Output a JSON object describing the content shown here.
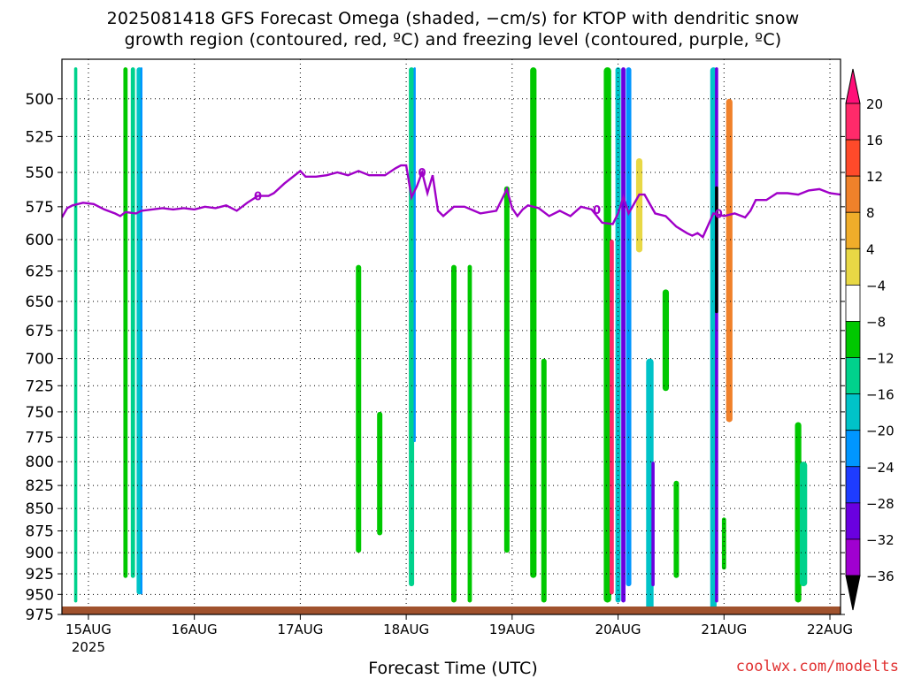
{
  "header": {
    "line1": "2025081418 GFS Forecast Omega (shaded, −cm/s) for KTOP with dendritic snow",
    "line2": "growth region (contoured, red, ºC) and freezing level (contoured, purple, ºC)"
  },
  "footer": {
    "xlabel": "Forecast Time (UTC)",
    "watermark": "coolwx.com/modelts"
  },
  "chart_data": {
    "type": "heatmap",
    "y_axis": {
      "label": "",
      "ticks": [
        500,
        525,
        550,
        575,
        600,
        625,
        650,
        675,
        700,
        725,
        750,
        775,
        800,
        825,
        850,
        875,
        900,
        925,
        950,
        975
      ],
      "range": [
        975,
        475
      ]
    },
    "x_axis": {
      "label": "Forecast Time (UTC)",
      "ticks": [
        "15AUG",
        "16AUG",
        "17AUG",
        "18AUG",
        "19AUG",
        "20AUG",
        "21AUG",
        "22AUG"
      ],
      "year_label": "2025",
      "range_days": [
        -0.25,
        7.1
      ]
    },
    "colorbar": {
      "labels": [
        "20",
        "16",
        "12",
        "8",
        "4",
        "−4",
        "−8",
        "−12",
        "−16",
        "−20",
        "−24",
        "−28",
        "−32",
        "−36"
      ],
      "colors": [
        "#ff2a6a",
        "#ff4a2a",
        "#f0812a",
        "#f0ad2a",
        "#e8d845",
        "#ffffff",
        "#00c800",
        "#00d28c",
        "#00c3c8",
        "#0096ff",
        "#1e3cff",
        "#6a00e0",
        "#a000d0",
        "#b4b4b4",
        "#000000",
        "#ff0f78"
      ]
    },
    "freezing_level": {
      "label": "0",
      "color": "#a000c8",
      "x_days": [
        -0.25,
        -0.2,
        -0.15,
        -0.05,
        0.05,
        0.15,
        0.25,
        0.3,
        0.35,
        0.45,
        0.5,
        0.6,
        0.7,
        0.8,
        0.9,
        1.0,
        1.1,
        1.2,
        1.3,
        1.4,
        1.5,
        1.6,
        1.7,
        1.75,
        1.85,
        2.0,
        2.05,
        2.15,
        2.25,
        2.35,
        2.45,
        2.55,
        2.65,
        2.8,
        2.9,
        2.95,
        3.0,
        3.05,
        3.1,
        3.15,
        3.2,
        3.25,
        3.3,
        3.35,
        3.45,
        3.55,
        3.7,
        3.85,
        3.95,
        4.0,
        4.05,
        4.1,
        4.15,
        4.25,
        4.35,
        4.45,
        4.55,
        4.65,
        4.75,
        4.85,
        4.95,
        5.0,
        5.05,
        5.1,
        5.2,
        5.25,
        5.35,
        5.45,
        5.55,
        5.65,
        5.7,
        5.75,
        5.8,
        5.9,
        6.0,
        6.1,
        6.2,
        6.25,
        6.3,
        6.4,
        6.5,
        6.6,
        6.7,
        6.8,
        6.9,
        7.0,
        7.1
      ],
      "y_hpa": [
        583,
        576,
        574,
        572,
        573,
        577,
        580,
        582,
        579,
        580,
        578,
        577,
        576,
        577,
        576,
        577,
        575,
        576,
        574,
        578,
        572,
        567,
        567,
        565,
        558,
        549,
        553,
        553,
        552,
        550,
        552,
        549,
        552,
        552,
        547,
        545,
        545,
        568,
        560,
        550,
        565,
        552,
        578,
        582,
        575,
        575,
        580,
        578,
        562,
        576,
        582,
        577,
        574,
        576,
        582,
        578,
        582,
        575,
        577,
        587,
        588,
        580,
        568,
        580,
        566,
        566,
        580,
        582,
        590,
        595,
        597,
        595,
        598,
        580,
        582,
        580,
        583,
        578,
        570,
        570,
        565,
        565,
        566,
        563,
        562,
        565,
        566
      ]
    },
    "omega_cells": [
      {
        "x": -0.12,
        "p": [
          480,
          960
        ],
        "w": 0.03,
        "c": 7
      },
      {
        "x": -0.02,
        "p": [
          480,
          640
        ],
        "w": 0.03,
        "c": 5
      },
      {
        "x": 0.3,
        "p": [
          480,
          525
        ],
        "w": 0.03,
        "c": 5
      },
      {
        "x": 0.35,
        "p": [
          480,
          930
        ],
        "w": 0.04,
        "c": 6
      },
      {
        "x": 0.42,
        "p": [
          480,
          930
        ],
        "w": 0.04,
        "c": 7
      },
      {
        "x": 0.48,
        "p": [
          480,
          950
        ],
        "w": 0.05,
        "c": 8
      },
      {
        "x": 0.5,
        "p": [
          480,
          950
        ],
        "w": 0.02,
        "c": 9
      },
      {
        "x": 0.6,
        "p": [
          480,
          700
        ],
        "w": 0.04,
        "c": 5
      },
      {
        "x": 1.5,
        "p": [
          510,
          760
        ],
        "w": 0.05,
        "c": 5
      },
      {
        "x": 1.6,
        "p": [
          560,
          780
        ],
        "w": 0.04,
        "c": 5
      },
      {
        "x": 2.3,
        "p": [
          560,
          640
        ],
        "w": 0.04,
        "c": 5
      },
      {
        "x": 2.45,
        "p": [
          600,
          940
        ],
        "w": 0.06,
        "c": 5
      },
      {
        "x": 2.55,
        "p": [
          620,
          900
        ],
        "w": 0.05,
        "c": 6
      },
      {
        "x": 2.75,
        "p": [
          750,
          880
        ],
        "w": 0.05,
        "c": 6
      },
      {
        "x": 3.05,
        "p": [
          480,
          940
        ],
        "w": 0.05,
        "c": 7
      },
      {
        "x": 3.08,
        "p": [
          480,
          780
        ],
        "w": 0.02,
        "c": 9
      },
      {
        "x": 3.3,
        "p": [
          560,
          720
        ],
        "w": 0.04,
        "c": 5
      },
      {
        "x": 3.45,
        "p": [
          620,
          960
        ],
        "w": 0.05,
        "c": 6
      },
      {
        "x": 3.6,
        "p": [
          620,
          960
        ],
        "w": 0.04,
        "c": 6
      },
      {
        "x": 3.8,
        "p": [
          530,
          730
        ],
        "w": 0.04,
        "c": 5
      },
      {
        "x": 3.95,
        "p": [
          560,
          900
        ],
        "w": 0.05,
        "c": 6
      },
      {
        "x": 4.2,
        "p": [
          480,
          930
        ],
        "w": 0.06,
        "c": 6
      },
      {
        "x": 4.3,
        "p": [
          700,
          960
        ],
        "w": 0.05,
        "c": 6
      },
      {
        "x": 4.5,
        "p": [
          480,
          870
        ],
        "w": 0.06,
        "c": 5
      },
      {
        "x": 4.6,
        "p": [
          560,
          760
        ],
        "w": 0.04,
        "c": 5
      },
      {
        "x": 4.75,
        "p": [
          600,
          900
        ],
        "w": 0.04,
        "c": 5
      },
      {
        "x": 4.9,
        "p": [
          480,
          960
        ],
        "w": 0.07,
        "c": 6
      },
      {
        "x": 4.94,
        "p": [
          600,
          950
        ],
        "w": 0.04,
        "c": 0
      },
      {
        "x": 5.0,
        "p": [
          480,
          960
        ],
        "w": 0.05,
        "c": 8
      },
      {
        "x": 5.05,
        "p": [
          480,
          960
        ],
        "w": 0.04,
        "c": 11
      },
      {
        "x": 5.1,
        "p": [
          480,
          940
        ],
        "w": 0.05,
        "c": 9
      },
      {
        "x": 5.2,
        "p": [
          540,
          610
        ],
        "w": 0.06,
        "c": 4
      },
      {
        "x": 5.3,
        "p": [
          700,
          980
        ],
        "w": 0.07,
        "c": 8
      },
      {
        "x": 5.33,
        "p": [
          800,
          940
        ],
        "w": 0.03,
        "c": 11
      },
      {
        "x": 5.45,
        "p": [
          640,
          730
        ],
        "w": 0.06,
        "c": 6
      },
      {
        "x": 5.55,
        "p": [
          820,
          930
        ],
        "w": 0.05,
        "c": 6
      },
      {
        "x": 5.9,
        "p": [
          480,
          970
        ],
        "w": 0.06,
        "c": 8
      },
      {
        "x": 5.93,
        "p": [
          480,
          960
        ],
        "w": 0.03,
        "c": 11
      },
      {
        "x": 5.93,
        "p": [
          560,
          660
        ],
        "w": 0.03,
        "c": 14
      },
      {
        "x": 6.05,
        "p": [
          500,
          760
        ],
        "w": 0.06,
        "c": 2
      },
      {
        "x": 6.0,
        "p": [
          860,
          920
        ],
        "w": 0.04,
        "c": 6
      },
      {
        "x": 6.7,
        "p": [
          760,
          960
        ],
        "w": 0.06,
        "c": 6
      },
      {
        "x": 6.75,
        "p": [
          800,
          940
        ],
        "w": 0.07,
        "c": 7
      },
      {
        "x": 6.9,
        "p": [
          660,
          760
        ],
        "w": 0.04,
        "c": 5
      },
      {
        "x": 6.98,
        "p": [
          840,
          870
        ],
        "w": 0.03,
        "c": 5
      }
    ]
  }
}
